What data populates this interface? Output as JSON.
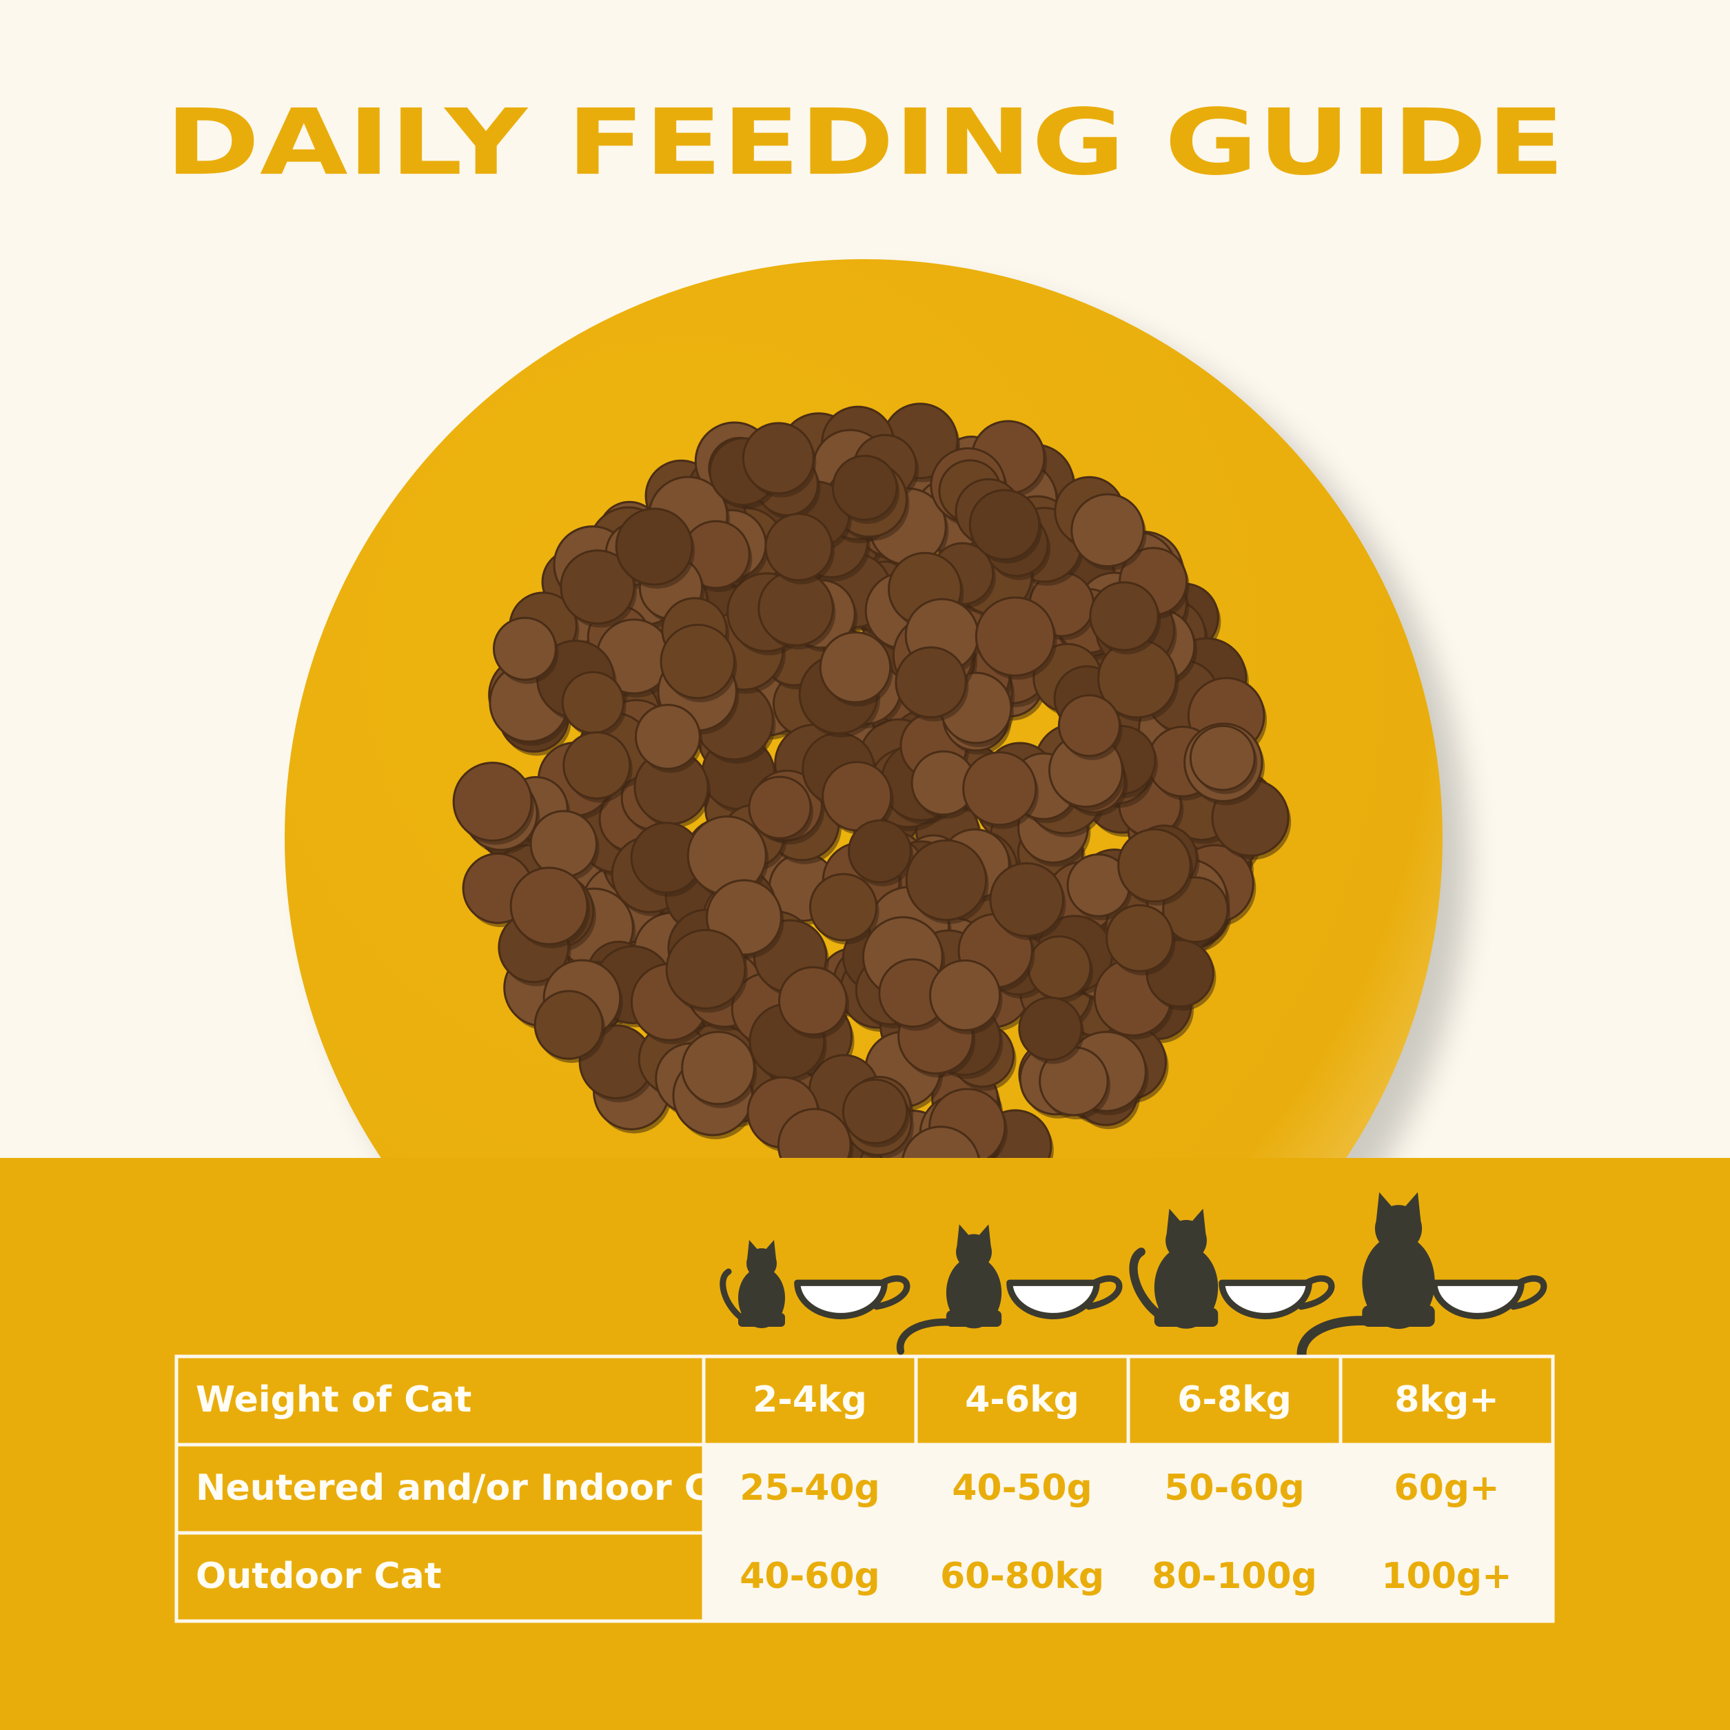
{
  "title": "DAILY FEEDING GUIDE",
  "table": {
    "header": [
      "Weight of Cat",
      "2-4kg",
      "4-6kg",
      "6-8kg",
      "8kg+"
    ],
    "rows": [
      [
        "Neutered and/or Indoor Cat",
        "25-40g",
        "40-50g",
        "50-60g",
        "60g+"
      ],
      [
        "Outdoor Cat",
        "40-60g",
        "60-80kg",
        "80-100g",
        "100g+"
      ]
    ]
  }
}
